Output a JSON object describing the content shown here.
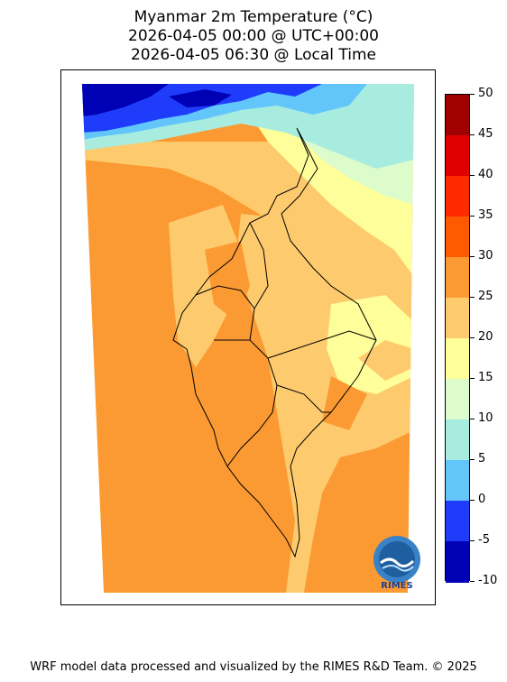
{
  "title": {
    "line1": "Myanmar 2m Temperature (°C)",
    "line2": "2026-04-05 00:00 @ UTC+00:00",
    "line3": "2026-04-05 06:30 @ Local Time"
  },
  "colorbar": {
    "levels": [
      "50",
      "45",
      "40",
      "35",
      "30",
      "25",
      "20",
      "15",
      "10",
      "5",
      "0",
      "-5",
      "-10"
    ],
    "colors": [
      "#a00000",
      "#e00000",
      "#ff2a00",
      "#ff5a00",
      "#fb9a32",
      "#fdcb6e",
      "#fefe9a",
      "#dcfccc",
      "#a8ece0",
      "#62c6fa",
      "#1e3cfa",
      "#0000b4"
    ]
  },
  "palette": {
    "t25_30": "#fb9a32",
    "t20_25": "#fdcb6e",
    "t15_20": "#fefe9a",
    "t10_15": "#dcfccc",
    "t5_10": "#a8ece0",
    "t0_5": "#62c6fa",
    "tm5_0": "#1e3cfa",
    "tm10_m5": "#0000b4"
  },
  "logo": {
    "text": "RIMES",
    "icon": "rimes-globe-logo"
  },
  "footer": "WRF model data processed and visualized by the RIMES R&D Team. © 2025"
}
